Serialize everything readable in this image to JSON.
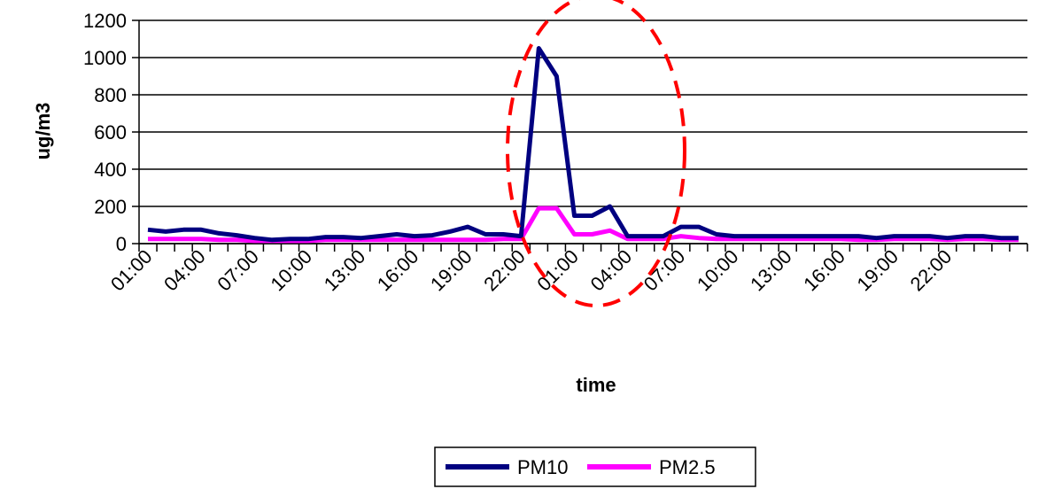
{
  "chart_data": {
    "type": "line",
    "title": "",
    "xlabel": "time",
    "ylabel": "ug/m3",
    "ylim": [
      0,
      1200
    ],
    "yticks": [
      0,
      200,
      400,
      600,
      800,
      1000,
      1200
    ],
    "x_tick_labels": [
      "01:00",
      "04:00",
      "07:00",
      "10:00",
      "13:00",
      "16:00",
      "19:00",
      "22:00",
      "01:00",
      "04:00",
      "07:00",
      "10:00",
      "13:00",
      "16:00",
      "19:00",
      "22:00"
    ],
    "x_tick_every": 3,
    "grid": "horizontal",
    "legend_position": "bottom-center",
    "colors": {
      "PM10": "#000080",
      "PM2.5": "#ff00ff",
      "highlight": "#ff0000"
    },
    "annotation": "dashed red ellipse around the 00:00-05:00 peak on day 2",
    "series": [
      {
        "name": "PM10",
        "values": [
          75,
          65,
          75,
          75,
          55,
          45,
          30,
          20,
          25,
          25,
          35,
          35,
          30,
          40,
          50,
          40,
          45,
          65,
          90,
          50,
          50,
          40,
          1050,
          900,
          150,
          150,
          200,
          40,
          40,
          40,
          90,
          90,
          50,
          40,
          40,
          40,
          40,
          40,
          40,
          40,
          40,
          30,
          40,
          40,
          40,
          30,
          40,
          40,
          30,
          30
        ]
      },
      {
        "name": "PM2.5",
        "values": [
          25,
          25,
          25,
          25,
          20,
          20,
          15,
          15,
          15,
          15,
          20,
          20,
          20,
          20,
          20,
          20,
          20,
          20,
          20,
          20,
          25,
          25,
          190,
          190,
          50,
          50,
          70,
          25,
          25,
          25,
          40,
          30,
          25,
          25,
          25,
          25,
          25,
          25,
          25,
          25,
          20,
          20,
          25,
          25,
          25,
          20,
          25,
          25,
          20,
          20
        ]
      }
    ]
  }
}
